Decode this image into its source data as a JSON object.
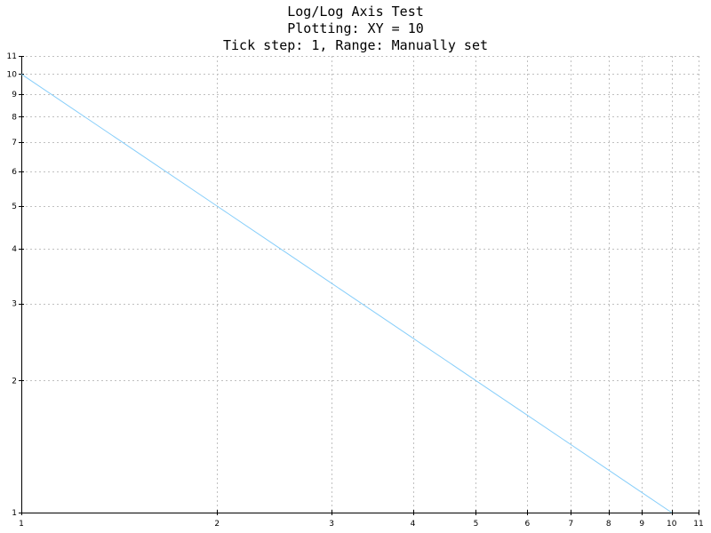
{
  "colors": {
    "background": "#ffffff",
    "axis": "#000000",
    "grid": "#c0c0c0",
    "series": "#87cefa"
  },
  "chart_data": {
    "type": "line",
    "title": "Log/Log Axis Test",
    "subtitle_lines": [
      "Plotting: XY = 10",
      "Tick step: 1, Range: Manually set"
    ],
    "xlabel": "",
    "ylabel": "",
    "xscale": "log",
    "yscale": "log",
    "xlim": [
      1,
      11
    ],
    "ylim": [
      1,
      11
    ],
    "x_ticks": [
      1,
      2,
      3,
      4,
      5,
      6,
      7,
      8,
      9,
      10,
      11
    ],
    "y_ticks": [
      1,
      2,
      3,
      4,
      5,
      6,
      7,
      8,
      9,
      10,
      11
    ],
    "grid": true,
    "legend": "none",
    "series": [
      {
        "x": [
          1,
          1.25,
          1.5,
          2,
          2.5,
          3,
          4,
          5,
          6,
          7,
          8,
          9,
          10
        ],
        "y": [
          10,
          8,
          6.667,
          5,
          4,
          3.333,
          2.5,
          2,
          1.667,
          1.429,
          1.25,
          1.111,
          1
        ],
        "color": "#87cefa"
      }
    ]
  }
}
